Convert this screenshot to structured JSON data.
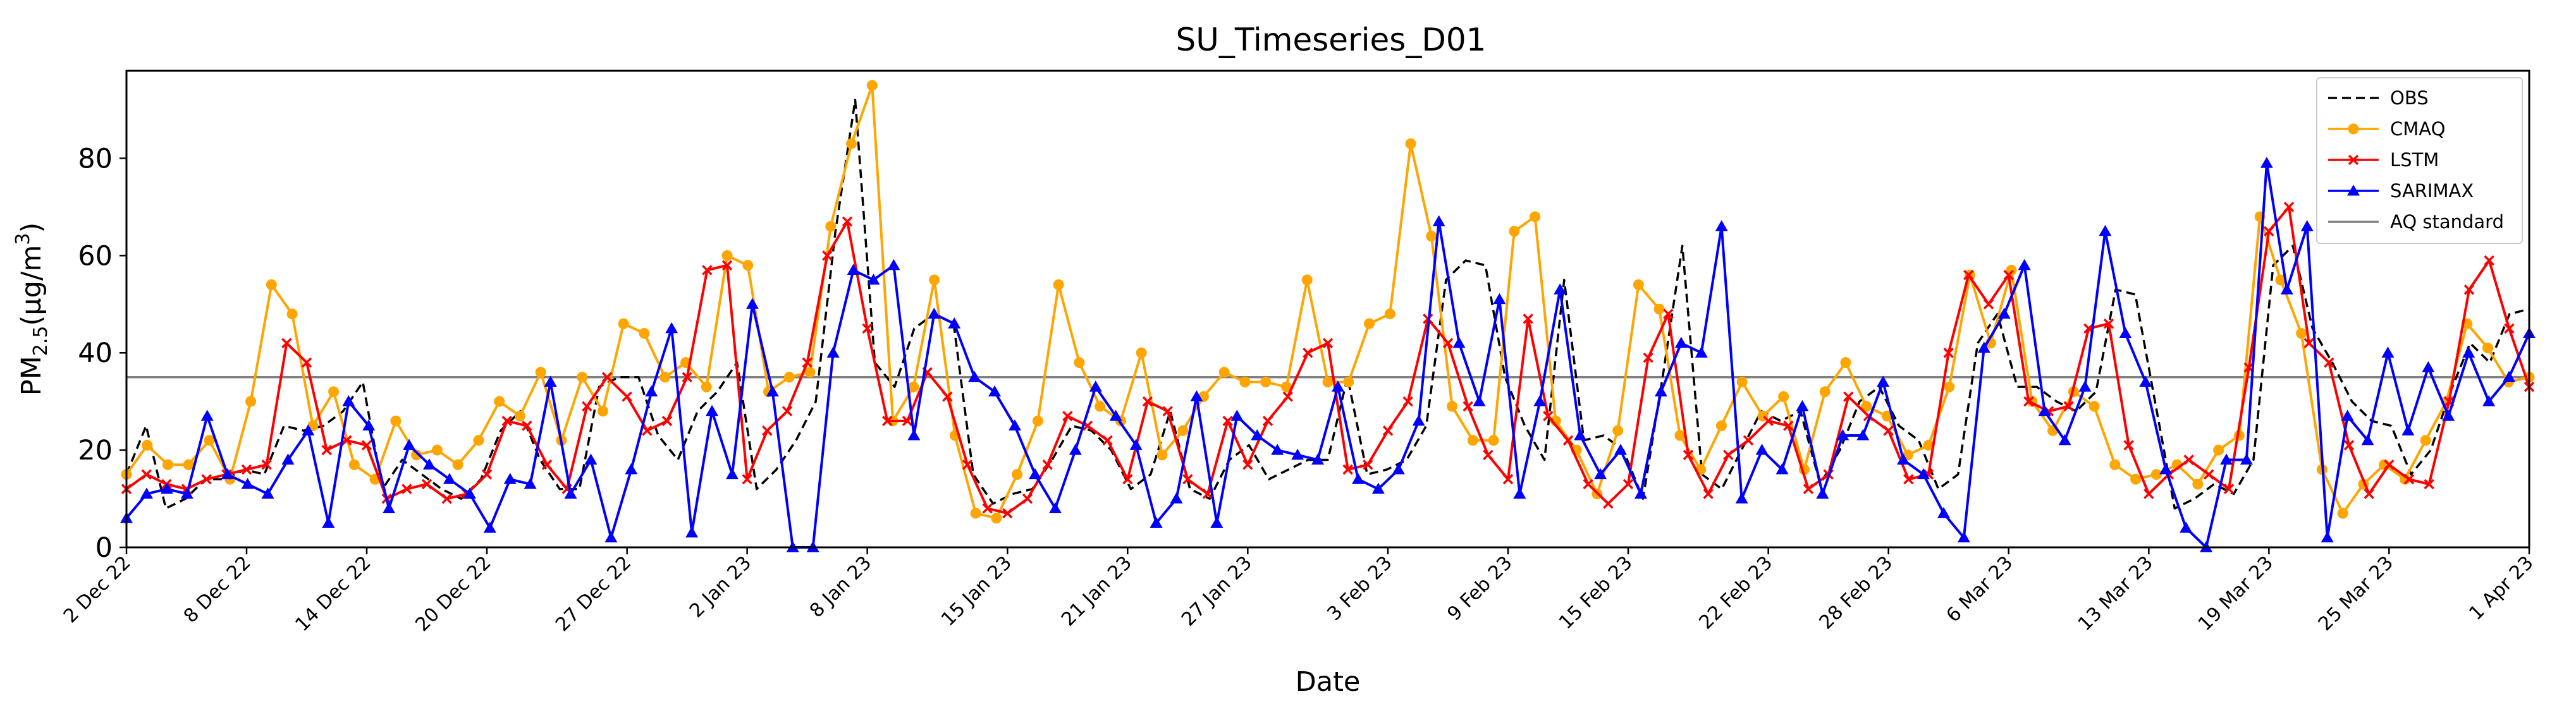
{
  "chart_data": {
    "type": "line",
    "title": "SU_Timeseries_D01",
    "xlabel": "Date",
    "ylabel": {
      "main": "PM",
      "sub": "2.5",
      "unit_open": "(μg/m",
      "unit_sup": "3",
      "unit_close": ")"
    },
    "ylim": [
      0,
      98
    ],
    "yticks": [
      0,
      20,
      40,
      60,
      80
    ],
    "xlim": [
      0,
      120
    ],
    "x_unit": "days since 2 Dec 22",
    "xticks": [
      {
        "x": 0,
        "label": "2 Dec 22"
      },
      {
        "x": 6,
        "label": "8 Dec 22"
      },
      {
        "x": 12,
        "label": "14 Dec 22"
      },
      {
        "x": 18,
        "label": "20 Dec 22"
      },
      {
        "x": 25,
        "label": "27 Dec 22"
      },
      {
        "x": 31,
        "label": "2 Jan 23"
      },
      {
        "x": 37,
        "label": "8 Jan 23"
      },
      {
        "x": 44,
        "label": "15 Jan 23"
      },
      {
        "x": 50,
        "label": "21 Jan 23"
      },
      {
        "x": 56,
        "label": "27 Jan 23"
      },
      {
        "x": 63,
        "label": "3 Feb 23"
      },
      {
        "x": 69,
        "label": "9 Feb 23"
      },
      {
        "x": 75,
        "label": "15 Feb 23"
      },
      {
        "x": 82,
        "label": "22 Feb 23"
      },
      {
        "x": 88,
        "label": "28 Feb 23"
      },
      {
        "x": 94,
        "label": "6 Mar 23"
      },
      {
        "x": 101,
        "label": "13 Mar 23"
      },
      {
        "x": 107,
        "label": "19 Mar 23"
      },
      {
        "x": 113,
        "label": "25 Mar 23"
      },
      {
        "x": 120,
        "label": "1 Apr 23"
      }
    ],
    "reference_line": {
      "name": "AQ standard",
      "value": 35,
      "color": "#808080"
    },
    "series": [
      {
        "name": "OBS",
        "color": "#000000",
        "style": "dashed",
        "marker": "none",
        "values": [
          15,
          25,
          8,
          10,
          14,
          14,
          16,
          15,
          25,
          24,
          25,
          28,
          34,
          12,
          18,
          15,
          12,
          10,
          14,
          24,
          28,
          18,
          12,
          12,
          33,
          35,
          35,
          23,
          18,
          28,
          32,
          38,
          12,
          16,
          22,
          30,
          65,
          92,
          38,
          33,
          45,
          48,
          46,
          15,
          9,
          11,
          12,
          18,
          25,
          24,
          20,
          12,
          15,
          28,
          12,
          10,
          18,
          21,
          14,
          16,
          18,
          18,
          35,
          15,
          16,
          18,
          25,
          55,
          59,
          58,
          35,
          25,
          18,
          55,
          22,
          23,
          20,
          10,
          35,
          62,
          15,
          12,
          20,
          28,
          26,
          28,
          13,
          20,
          30,
          33,
          25,
          22,
          12,
          15,
          42,
          48,
          33,
          33,
          30,
          28,
          32,
          53,
          52,
          30,
          8,
          10,
          13,
          11,
          18,
          58,
          62,
          45,
          38,
          30,
          26,
          25,
          15,
          20,
          32,
          42,
          38,
          48,
          49
        ]
      },
      {
        "name": "CMAQ",
        "color": "#FFA500",
        "style": "solid",
        "marker": "circle",
        "values": [
          15,
          21,
          17,
          17,
          22,
          14,
          30,
          54,
          48,
          25,
          32,
          17,
          14,
          26,
          19,
          20,
          17,
          22,
          30,
          27,
          36,
          22,
          35,
          28,
          46,
          44,
          35,
          38,
          33,
          60,
          58,
          32,
          35,
          36,
          66,
          83,
          95,
          26,
          33,
          55,
          23,
          7,
          6,
          15,
          26,
          54,
          38,
          29,
          26,
          40,
          19,
          24,
          31,
          36,
          34,
          34,
          33,
          55,
          34,
          34,
          46,
          48,
          83,
          64,
          29,
          22,
          22,
          65,
          68,
          26,
          20,
          11,
          24,
          54,
          49,
          23,
          16,
          25,
          34,
          27,
          31,
          16,
          32,
          38,
          29,
          27,
          19,
          21,
          33,
          56,
          42,
          57,
          30,
          24,
          32,
          29,
          17,
          14,
          15,
          17,
          13,
          20,
          23,
          68,
          55,
          44,
          16,
          7,
          13,
          17,
          14,
          22,
          30,
          46,
          41,
          34,
          35
        ]
      },
      {
        "name": "LSTM",
        "color": "#FF0000",
        "style": "solid",
        "marker": "x",
        "values": [
          12,
          15,
          13,
          12,
          14,
          15,
          16,
          17,
          42,
          38,
          20,
          22,
          21,
          10,
          12,
          13,
          10,
          11,
          15,
          26,
          25,
          17,
          12,
          29,
          35,
          31,
          24,
          26,
          35,
          57,
          58,
          14,
          24,
          28,
          38,
          60,
          67,
          45,
          26,
          26,
          36,
          31,
          17,
          8,
          7,
          10,
          17,
          27,
          25,
          22,
          14,
          30,
          28,
          14,
          11,
          26,
          17,
          26,
          31,
          40,
          42,
          16,
          17,
          24,
          30,
          47,
          42,
          29,
          19,
          14,
          47,
          27,
          22,
          13,
          9,
          13,
          39,
          48,
          19,
          11,
          19,
          22,
          26,
          25,
          12,
          15,
          31,
          27,
          24,
          14,
          15,
          40,
          56,
          50,
          56,
          30,
          28,
          29,
          45,
          46,
          21,
          11,
          15,
          18,
          15,
          12,
          37,
          65,
          70,
          42,
          38,
          21,
          11,
          17,
          14,
          13,
          30,
          53,
          59,
          45,
          33
        ]
      },
      {
        "name": "SARIMAX",
        "color": "#0000FF",
        "style": "solid",
        "marker": "triangle",
        "values": [
          6,
          11,
          12,
          11,
          27,
          15,
          13,
          11,
          18,
          24,
          5,
          30,
          25,
          8,
          21,
          17,
          14,
          11,
          4,
          14,
          13,
          34,
          11,
          18,
          2,
          16,
          32,
          45,
          3,
          28,
          15,
          50,
          32,
          0,
          0,
          40,
          57,
          55,
          58,
          23,
          48,
          46,
          35,
          32,
          25,
          15,
          8,
          20,
          33,
          27,
          21,
          5,
          10,
          31,
          5,
          27,
          23,
          20,
          19,
          18,
          33,
          14,
          12,
          16,
          26,
          67,
          42,
          30,
          51,
          11,
          30,
          53,
          23,
          15,
          20,
          11,
          32,
          42,
          40,
          66,
          10,
          20,
          16,
          29,
          11,
          23,
          23,
          34,
          18,
          15,
          7,
          2,
          41,
          48,
          58,
          28,
          22,
          33,
          65,
          44,
          34,
          16,
          4,
          0,
          18,
          18,
          79,
          53,
          66,
          2,
          27,
          22,
          40,
          24,
          37,
          27,
          40,
          30,
          35,
          44
        ]
      }
    ],
    "legend": {
      "position": "top-right",
      "entries": [
        "OBS",
        "CMAQ",
        "LSTM",
        "SARIMAX",
        "AQ standard"
      ]
    }
  }
}
